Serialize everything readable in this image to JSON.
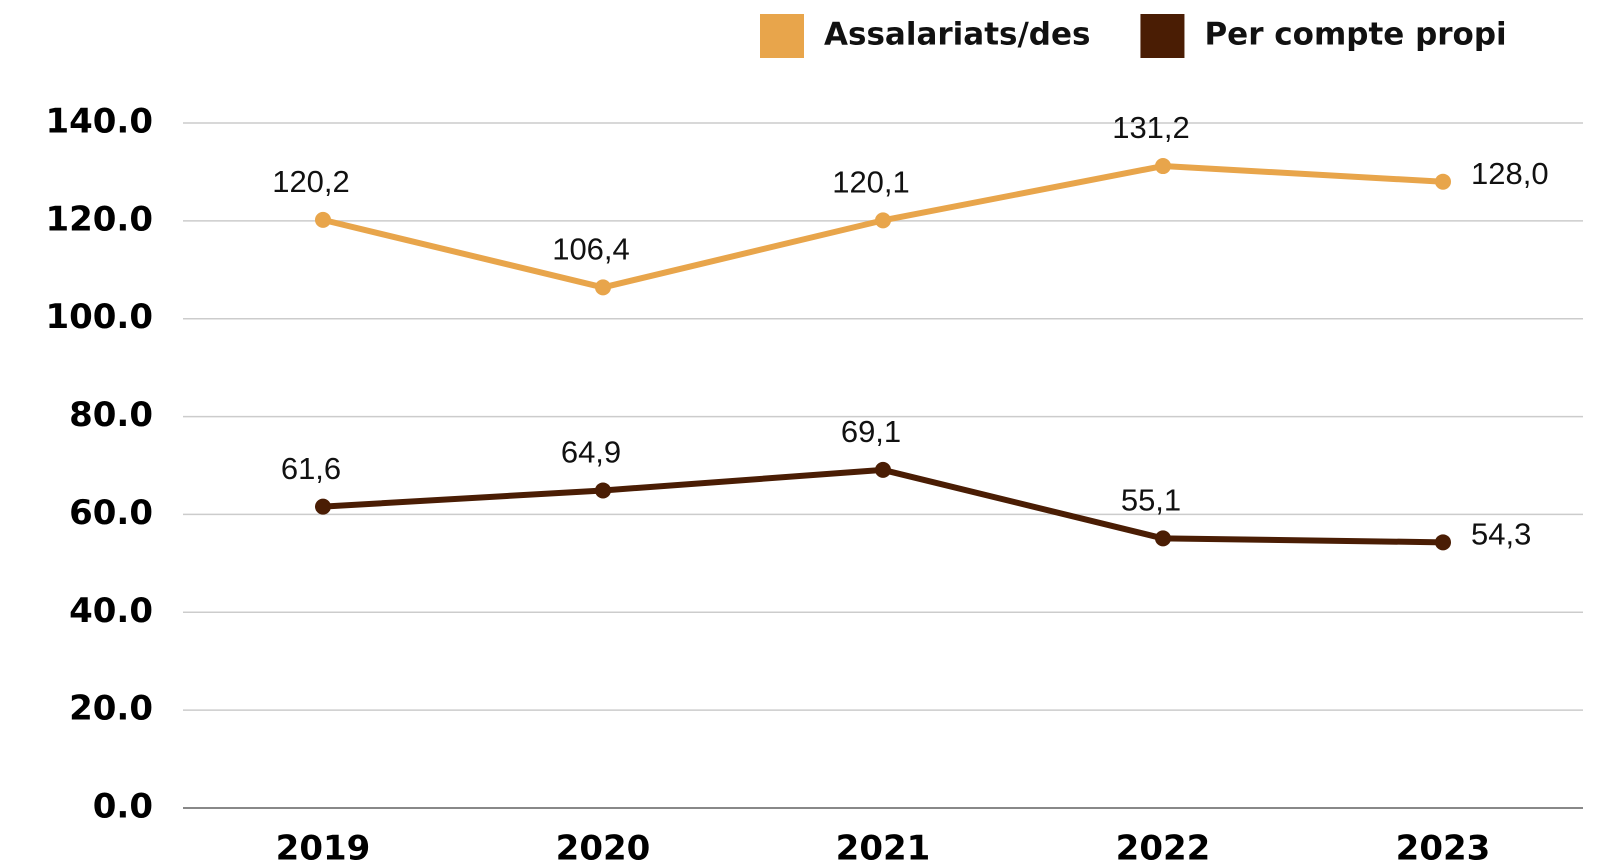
{
  "chart_data": {
    "type": "line",
    "categories": [
      "2019",
      "2020",
      "2021",
      "2022",
      "2023"
    ],
    "series": [
      {
        "name": "Assalariats/des",
        "color": "#e8a54b",
        "values": [
          120.2,
          106.4,
          120.1,
          131.2,
          128.0
        ],
        "value_labels": [
          "120,2",
          "106,4",
          "120,1",
          "131,2",
          "128,0"
        ]
      },
      {
        "name": "Per compte propi",
        "color": "#4a1d04",
        "values": [
          61.6,
          64.9,
          69.1,
          55.1,
          54.3
        ],
        "value_labels": [
          "61,6",
          "64,9",
          "69,1",
          "55,1",
          "54,3"
        ]
      }
    ],
    "ylim": [
      0,
      140
    ],
    "yticks": [
      {
        "value": 0,
        "label": "0.0"
      },
      {
        "value": 20,
        "label": "20.0"
      },
      {
        "value": 40,
        "label": "40.0"
      },
      {
        "value": 60,
        "label": "60.0"
      },
      {
        "value": 80,
        "label": "80.0"
      },
      {
        "value": 100,
        "label": "100.0"
      },
      {
        "value": 120,
        "label": "120.0"
      },
      {
        "value": 140,
        "label": "140.0"
      }
    ],
    "grid": true,
    "legend": "top-right"
  }
}
